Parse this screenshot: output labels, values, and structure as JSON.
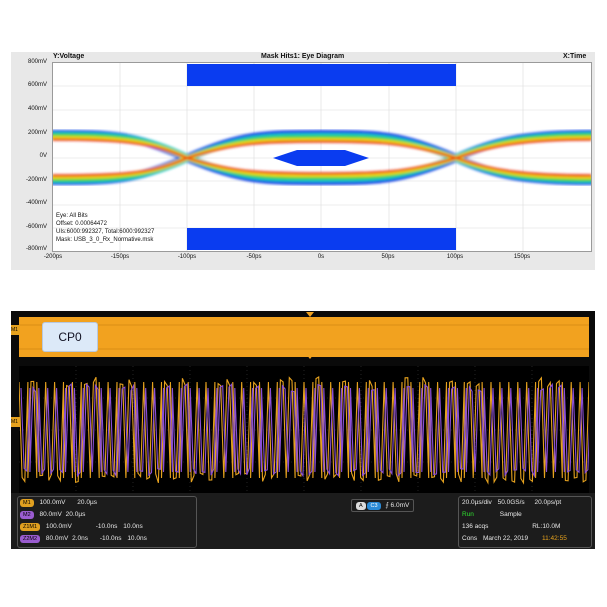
{
  "eye": {
    "y_title": "Y:Voltage",
    "title": "Mask Hits1: Eye Diagram",
    "x_title": "X:Time",
    "y_ticks": [
      "800mV",
      "600mV",
      "400mV",
      "200mV",
      "0V",
      "-200mV",
      "-400mV",
      "-600mV",
      "-800mV"
    ],
    "x_ticks": [
      "-200ps",
      "-150ps",
      "-100ps",
      "-50ps",
      "0s",
      "50ps",
      "100ps",
      "150ps"
    ],
    "info": [
      "Eye: All Bits",
      "Offset: 0.00064472",
      "UIs:6000:992327, Total:6000:992327",
      "Mask: USB_3_0_Rx_Normative.msk"
    ],
    "mask_color": "#0a3cf0"
  },
  "scope": {
    "label": "CP0",
    "ch_label_top": "M1",
    "ch_label_mid": "M1",
    "rows": [
      {
        "badge": "M1",
        "badge_color": "#e0a020",
        "v": "100.0mV",
        "t": "20.0µs",
        "extra": ""
      },
      {
        "badge": "M2",
        "badge_color": "#9a5cd0",
        "v": "80.0mV",
        "t": "20.0µs",
        "extra": ""
      },
      {
        "badge": "Z1M1",
        "badge_color": "#e0a020",
        "v": "100.0mV",
        "t": "-10.0ns",
        "extra": "10.0ns"
      },
      {
        "badge": "Z2M2",
        "badge_color": "#9a5cd0",
        "v": "80.0mV",
        "t2": "2.0ns",
        "t": "-10.0ns",
        "extra": "10.0ns"
      }
    ],
    "trigger": {
      "mode": "A",
      "src": "C3",
      "level": "6.0mV"
    },
    "timebase": "20.0µs/div",
    "sample_rate": "50.0GS/s",
    "res": "20.0ps/pt",
    "run": "Run",
    "acq_mode": "Sample",
    "acqs": "136 acqs",
    "rl": "RL:10.0M",
    "cons": "Cons",
    "date": "March 22, 2019",
    "time": "11:42:55",
    "colors": {
      "yellow": "#e6a21e",
      "purple": "#8a4fd6",
      "run": "#2ee02e",
      "time": "#e6a21e"
    }
  }
}
